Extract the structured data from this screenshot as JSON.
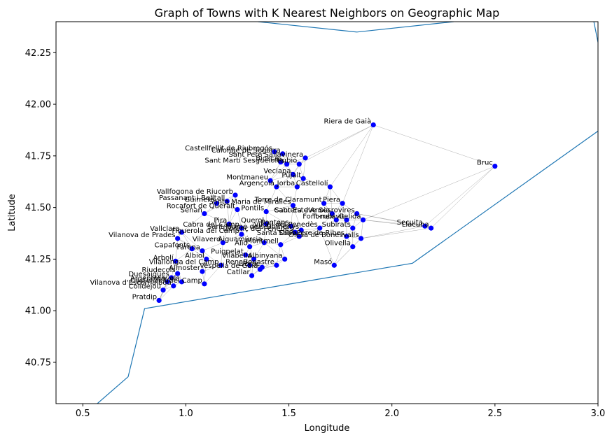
{
  "chart_data": {
    "type": "scatter",
    "title": "Graph of Towns with K Nearest Neighbors on Geographic Map",
    "xlabel": "Longitude",
    "ylabel": "Latitude",
    "xlim": [
      0.37,
      3.0
    ],
    "ylim": [
      40.55,
      42.4
    ],
    "x_ticks": [
      0.5,
      1.0,
      1.5,
      2.0,
      2.5,
      3.0
    ],
    "x_tick_labels": [
      "0.5",
      "1.0",
      "1.5",
      "2.0",
      "2.5",
      "3.0"
    ],
    "y_ticks": [
      40.75,
      41.0,
      41.25,
      41.5,
      41.75,
      42.0,
      42.25
    ],
    "y_tick_labels": [
      "40.75",
      "41.00",
      "41.25",
      "41.50",
      "41.75",
      "42.00",
      "42.25"
    ],
    "grid": false,
    "colors": {
      "point": "#0000ff",
      "coast": "#1f77b4",
      "edge": "#808080"
    },
    "coastline": [
      [
        [
          0.5,
          40.5
        ],
        [
          0.57,
          40.55
        ],
        [
          0.72,
          40.68
        ],
        [
          0.8,
          41.01
        ],
        [
          2.1,
          41.23
        ],
        [
          3.0,
          41.87
        ]
      ],
      [
        [
          1.35,
          42.4
        ],
        [
          1.83,
          42.35
        ],
        [
          2.3,
          42.4
        ]
      ],
      [
        [
          2.98,
          42.4
        ],
        [
          3.0,
          42.3
        ]
      ]
    ],
    "towns": [
      {
        "name": "Riera de Gaià",
        "lon": 1.91,
        "lat": 41.9
      },
      {
        "name": "Castellfellit de Riubregós",
        "lon": 1.43,
        "lat": 41.77
      },
      {
        "name": "Calonge de Segarra",
        "lon": 1.47,
        "lat": 41.76
      },
      {
        "name": "Sant Pere Sallavinera",
        "lon": 1.58,
        "lat": 41.74
      },
      {
        "name": "Biosca",
        "lon": 1.46,
        "lat": 41.72
      },
      {
        "name": "Sant Martí Sesgueioles",
        "lon": 1.49,
        "lat": 41.71
      },
      {
        "name": "Rubió",
        "lon": 1.55,
        "lat": 41.71
      },
      {
        "name": "Bruc",
        "lon": 2.5,
        "lat": 41.7
      },
      {
        "name": "Veciana",
        "lon": 1.52,
        "lat": 41.66
      },
      {
        "name": "Pujalt",
        "lon": 1.57,
        "lat": 41.64
      },
      {
        "name": "Montmaneu",
        "lon": 1.41,
        "lat": 41.63
      },
      {
        "name": "Argençola",
        "lon": 1.44,
        "lat": 41.6
      },
      {
        "name": "Jorba",
        "lon": 1.54,
        "lat": 41.6
      },
      {
        "name": "Castellolí",
        "lon": 1.7,
        "lat": 41.6
      },
      {
        "name": "Vallfogona de Riucorb",
        "lon": 1.24,
        "lat": 41.56
      },
      {
        "name": "Passanant i Belltall",
        "lon": 1.2,
        "lat": 41.53
      },
      {
        "name": "Guimerà",
        "lon": 1.15,
        "lat": 41.52
      },
      {
        "name": "Torre de Claramunt",
        "lon": 1.67,
        "lat": 41.52
      },
      {
        "name": "Piera",
        "lon": 1.76,
        "lat": 41.52
      },
      {
        "name": "Santa Maria de Miralles",
        "lon": 1.52,
        "lat": 41.51
      },
      {
        "name": "Rocafort de Queralt",
        "lon": 1.25,
        "lat": 41.49
      },
      {
        "name": "Pontils",
        "lon": 1.39,
        "lat": 41.48
      },
      {
        "name": "Cabrera d'Anoia",
        "lon": 1.71,
        "lat": 41.47
      },
      {
        "name": "Sant Esteve Sesrovires",
        "lon": 1.83,
        "lat": 41.47
      },
      {
        "name": "Senan",
        "lon": 1.09,
        "lat": 41.47
      },
      {
        "name": "Font-rubí",
        "lon": 1.73,
        "lat": 41.44
      },
      {
        "name": "Querol",
        "lon": 1.39,
        "lat": 41.42
      },
      {
        "name": "Pira",
        "lon": 1.21,
        "lat": 41.42
      },
      {
        "name": "Pontons",
        "lon": 1.51,
        "lat": 41.41
      },
      {
        "name": "Torrelavit",
        "lon": 1.78,
        "lat": 41.44
      },
      {
        "name": "Vilobí del Penedès",
        "lon": 1.65,
        "lat": 41.4
      },
      {
        "name": "Subirats",
        "lon": 1.81,
        "lat": 41.4
      },
      {
        "name": "Cabra del Camp",
        "lon": 1.27,
        "lat": 41.4
      },
      {
        "name": "Vallclara",
        "lon": 0.98,
        "lat": 41.38
      },
      {
        "name": "Figuerola del Camp",
        "lon": 1.27,
        "lat": 41.37
      },
      {
        "name": "Sant Jaume dels Domenys",
        "lon": 1.56,
        "lat": 41.39
      },
      {
        "name": "Gelida",
        "lon": 1.86,
        "lat": 41.44
      },
      {
        "name": "Santa Oliva",
        "lon": 1.55,
        "lat": 41.36
      },
      {
        "name": "Llorenç del Penedès",
        "lon": 1.53,
        "lat": 41.38
      },
      {
        "name": "Olesa de Bonesvalls",
        "lon": 1.85,
        "lat": 41.35
      },
      {
        "name": "Sant Pere de Ribes",
        "lon": 1.78,
        "lat": 41.36
      },
      {
        "name": "Vilanova de Prades",
        "lon": 0.96,
        "lat": 41.35
      },
      {
        "name": "Vilaverd",
        "lon": 1.18,
        "lat": 41.33
      },
      {
        "name": "Alió",
        "lon": 1.31,
        "lat": 41.31
      },
      {
        "name": "Montmell",
        "lon": 1.46,
        "lat": 41.32
      },
      {
        "name": "Olivella",
        "lon": 1.81,
        "lat": 41.31
      },
      {
        "name": "Capafonts",
        "lon": 1.03,
        "lat": 41.3
      },
      {
        "name": "Farena",
        "lon": 1.08,
        "lat": 41.29
      },
      {
        "name": "Puigpelat",
        "lon": 1.29,
        "lat": 41.27
      },
      {
        "name": "Aiguamúrcia",
        "lon": 1.38,
        "lat": 41.33
      },
      {
        "name": "Albinyana",
        "lon": 1.48,
        "lat": 41.25
      },
      {
        "name": "Albiol",
        "lon": 1.1,
        "lat": 41.25
      },
      {
        "name": "Arbolí",
        "lon": 0.95,
        "lat": 41.24
      },
      {
        "name": "Masó",
        "lon": 1.72,
        "lat": 41.22
      },
      {
        "name": "Vilallonga del Camp",
        "lon": 1.17,
        "lat": 41.22
      },
      {
        "name": "Vilabella",
        "lon": 1.33,
        "lat": 41.25
      },
      {
        "name": "Bonastre",
        "lon": 1.44,
        "lat": 41.22
      },
      {
        "name": "Llorac",
        "lon": 1.37,
        "lat": 41.21
      },
      {
        "name": "Vespella de Gaià",
        "lon": 1.36,
        "lat": 41.2
      },
      {
        "name": "Renau",
        "lon": 1.31,
        "lat": 41.22
      },
      {
        "name": "Riudecols",
        "lon": 0.96,
        "lat": 41.18
      },
      {
        "name": "Duesaigües",
        "lon": 0.93,
        "lat": 41.16
      },
      {
        "name": "Almoster",
        "lon": 1.08,
        "lat": 41.19
      },
      {
        "name": "Argentera",
        "lon": 0.91,
        "lat": 41.14
      },
      {
        "name": "Vinyols",
        "lon": 0.98,
        "lat": 41.14
      },
      {
        "name": "Castellvell del Camp",
        "lon": 1.09,
        "lat": 41.13
      },
      {
        "name": "Vilanova d'Escornalbou",
        "lon": 0.94,
        "lat": 41.12
      },
      {
        "name": "Colldejou",
        "lon": 0.89,
        "lat": 41.1
      },
      {
        "name": "Catllar",
        "lon": 1.32,
        "lat": 41.17
      },
      {
        "name": "Pratdip",
        "lon": 0.87,
        "lat": 41.05
      },
      {
        "name": "Secuita",
        "lon": 2.16,
        "lat": 41.41
      },
      {
        "name": "Llacuna",
        "lon": 2.19,
        "lat": 41.4
      }
    ]
  }
}
